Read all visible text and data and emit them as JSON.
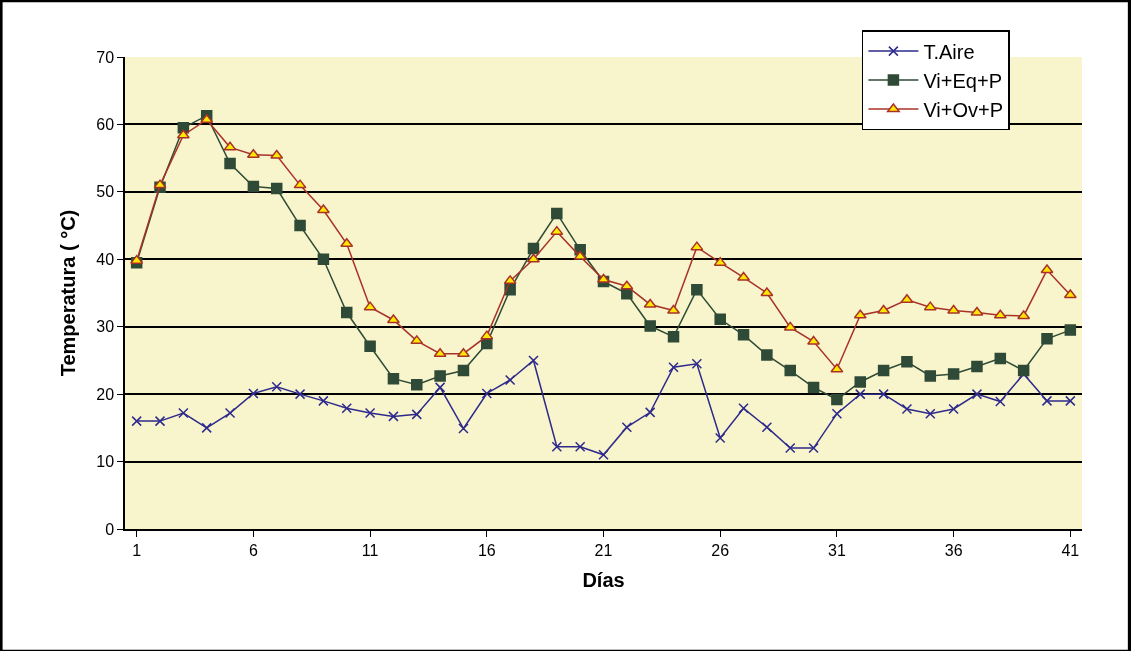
{
  "chart_data": {
    "type": "line",
    "xlabel": "Días",
    "ylabel": "Temperatura ( °C)",
    "x": [
      1,
      2,
      3,
      4,
      5,
      6,
      7,
      8,
      9,
      10,
      11,
      12,
      13,
      14,
      15,
      16,
      17,
      18,
      19,
      20,
      21,
      22,
      23,
      24,
      25,
      26,
      27,
      28,
      29,
      30,
      31,
      32,
      33,
      34,
      35,
      36,
      37,
      38,
      39,
      40,
      41
    ],
    "series": [
      {
        "name": "T.Aire",
        "color": "#2e2a8c",
        "marker": "cross",
        "values": [
          16,
          16,
          17.2,
          15,
          17.2,
          20.1,
          21.1,
          20,
          19,
          17.9,
          17.2,
          16.7,
          17,
          21,
          14.9,
          20.1,
          22.1,
          25,
          12.2,
          12.2,
          11,
          15.1,
          17.3,
          24,
          24.5,
          13.5,
          17.9,
          15.1,
          12,
          12,
          17.1,
          20,
          20,
          17.8,
          17.1,
          17.8,
          20,
          18.9,
          23,
          19,
          19
        ]
      },
      {
        "name": "Vi+Eq+P",
        "color": "#2f4a36",
        "marker": "square",
        "values": [
          39.5,
          50.7,
          59.5,
          61.3,
          54.2,
          50.8,
          50.5,
          45,
          40,
          32.1,
          27.1,
          22.3,
          21.4,
          22.7,
          23.5,
          27.5,
          35.5,
          41.6,
          46.8,
          41.4,
          36.7,
          34.9,
          30.1,
          28.5,
          35.5,
          31.1,
          28.8,
          25.8,
          23.5,
          21,
          19.2,
          21.8,
          23.5,
          24.8,
          22.7,
          23,
          24.1,
          25.3,
          23.5,
          28.2,
          29.5
        ]
      },
      {
        "name": "Vi+Ov+P",
        "color": "#a83228",
        "marker": "triangle",
        "values": [
          39.8,
          51,
          58.4,
          60.7,
          56.6,
          55.5,
          55.4,
          51,
          47.3,
          42.3,
          32.9,
          31,
          27.9,
          26,
          26,
          28.6,
          36.8,
          40,
          44.1,
          40.4,
          37,
          36,
          33.3,
          32.4,
          41.8,
          39.5,
          37.3,
          35,
          29.9,
          27.8,
          23.7,
          31.7,
          32.4,
          34,
          32.9,
          32.4,
          32.1,
          31.7,
          31.6,
          38.4,
          34.7
        ]
      }
    ],
    "xlim": [
      0.5,
      41.5
    ],
    "xticks": [
      1,
      6,
      11,
      16,
      21,
      26,
      31,
      36,
      41
    ],
    "ylim": [
      0,
      70
    ],
    "yticks": [
      0,
      10,
      20,
      30,
      40,
      50,
      60,
      70
    ],
    "grid": "y",
    "legend": "top right"
  }
}
